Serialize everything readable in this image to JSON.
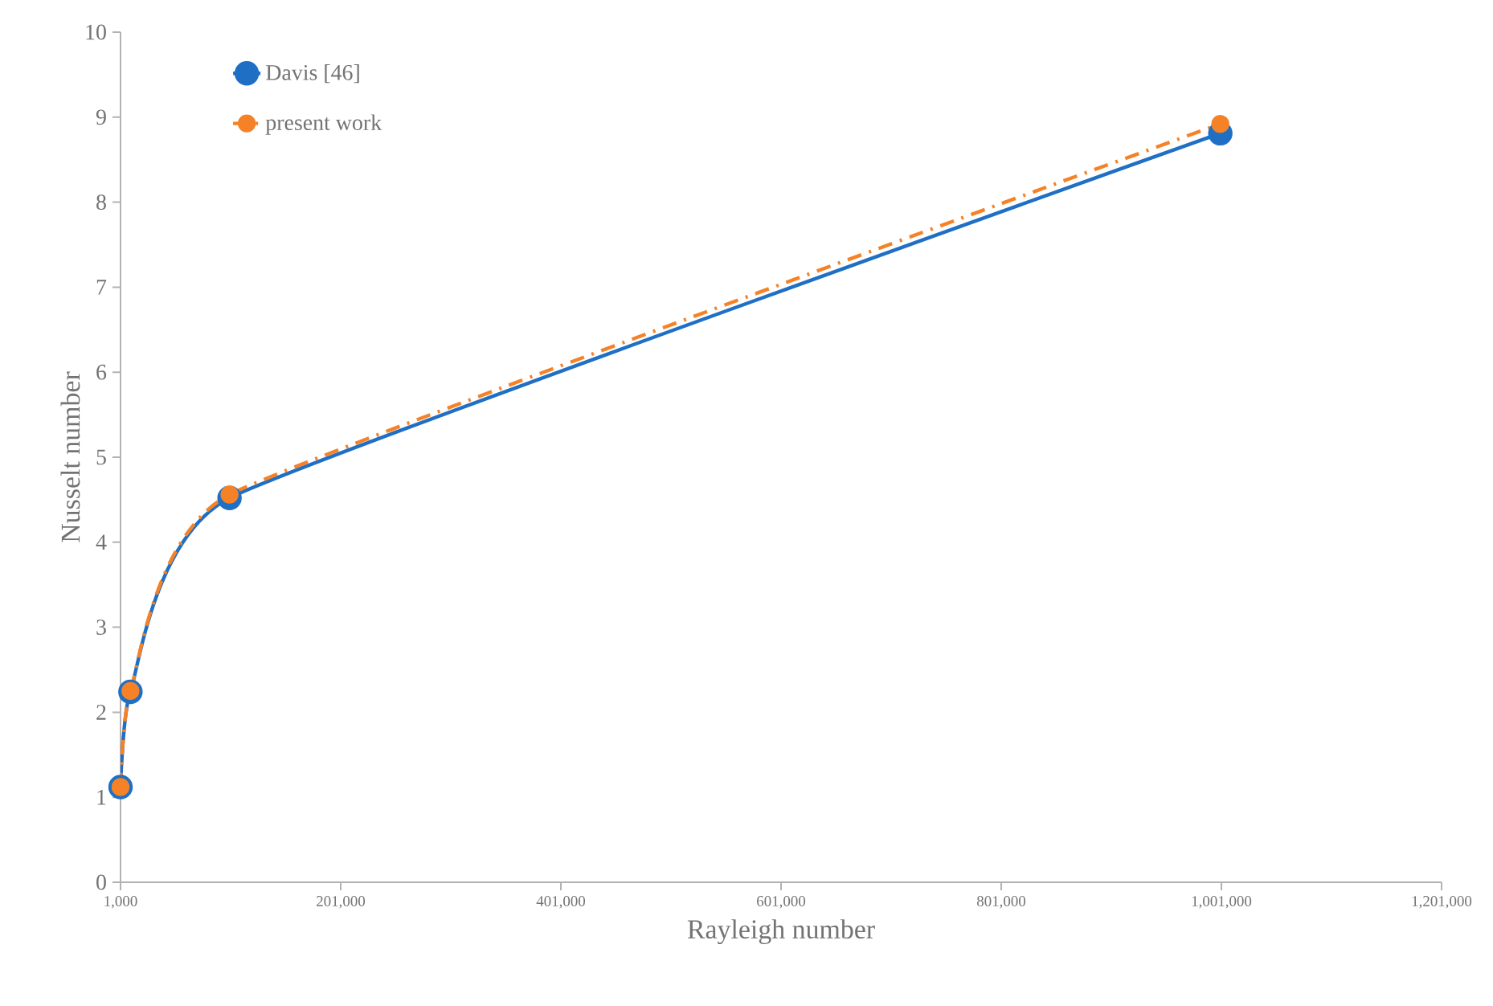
{
  "chart_data": {
    "type": "line",
    "xlabel": "Rayleigh number",
    "ylabel": "Nusselt number",
    "x": [
      1000,
      10000,
      100000,
      1000000
    ],
    "series": [
      {
        "name": "Davis [46]",
        "color": "#1f6fc5",
        "values": [
          1.12,
          2.24,
          4.52,
          8.81
        ],
        "line_style": "solid"
      },
      {
        "name": "present work",
        "color": "#f58227",
        "values": [
          1.12,
          2.25,
          4.56,
          8.92
        ],
        "line_style": "dashed"
      }
    ],
    "marker": "circle",
    "legend": "top left",
    "grid": false,
    "xlim": [
      1000,
      1201000
    ],
    "xticks": [
      {
        "value": 1000,
        "label": "1,000"
      },
      {
        "value": 201000,
        "label": "201,000"
      },
      {
        "value": 401000,
        "label": "401,000"
      },
      {
        "value": 601000,
        "label": "601,000"
      },
      {
        "value": 801000,
        "label": "801,000"
      },
      {
        "value": 1001000,
        "label": "1,001,000"
      },
      {
        "value": 1201000,
        "label": "1,201,000"
      }
    ],
    "ylim": [
      0,
      10
    ],
    "yticks": [
      0,
      1,
      2,
      3,
      4,
      5,
      6,
      7,
      8,
      9,
      10
    ]
  }
}
